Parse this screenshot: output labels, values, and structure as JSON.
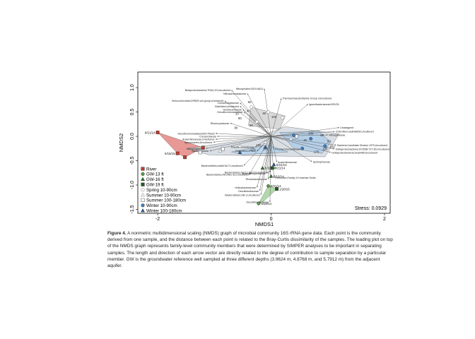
{
  "chart_data": {
    "type": "scatter",
    "xlabel": "NMDS1",
    "ylabel": "NMDS2",
    "xlim": [
      -2.35,
      2.1
    ],
    "ylim": [
      -1.58,
      1.32
    ],
    "xticks": [
      -2,
      0,
      2
    ],
    "yticks": [
      -1.5,
      -1.0,
      -0.5,
      0.0,
      0.5,
      1.0
    ],
    "stress_label": "Stress: 0.0929",
    "colors": {
      "River": "#c0392b",
      "GW-13 ft": "#5a9e4b",
      "GW-16 ft": "#2e7d32",
      "GW-19 ft": "#1b5e20",
      "Spring 10-90cm": "#6e6e6e",
      "Summer 10-90cm": "#7a7a7a",
      "Summer 100-180cm": "#555555",
      "Winter 10-90cm": "#3f7fc0",
      "Winter 100-180cm": "#2b5f9a"
    },
    "legend": [
      {
        "label": "River",
        "shape": "square"
      },
      {
        "label": "GW-13 ft",
        "shape": "circle"
      },
      {
        "label": "GW-16 ft",
        "shape": "triangle"
      },
      {
        "label": "GW-19 ft",
        "shape": "square"
      },
      {
        "label": "Spring 10-90cm",
        "shape": "circle-open"
      },
      {
        "label": "Summer 10-90cm",
        "shape": "triangle-open"
      },
      {
        "label": "Summer 100-180cm",
        "shape": "square-open"
      },
      {
        "label": "Winter 10-90cm",
        "shape": "circle"
      },
      {
        "label": "Winter 100-180cm",
        "shape": "triangle"
      }
    ],
    "hulls": [
      {
        "group": "River",
        "fill": "#d9534f",
        "points": [
          [
            -2.0,
            0.08
          ],
          [
            -1.2,
            -0.23
          ],
          [
            -1.52,
            -0.43
          ],
          [
            -1.65,
            -0.35
          ]
        ]
      },
      {
        "group": "GW-13 ft",
        "fill": "#7fbf6f",
        "points": [
          [
            -0.22,
            -1.38
          ],
          [
            -0.05,
            -1.02
          ],
          [
            0.1,
            -1.08
          ],
          [
            -0.12,
            -1.32
          ]
        ]
      },
      {
        "group": "Spring 10-90cm",
        "fill": "#bfbfbf",
        "points": [
          [
            -0.35,
            0.6
          ],
          [
            0.25,
            0.42
          ],
          [
            0.15,
            0.15
          ],
          [
            -0.4,
            0.22
          ]
        ]
      },
      {
        "group": "Summer 10-90cm",
        "fill": "#bfc9d4",
        "points": [
          [
            -1.5,
            -0.25
          ],
          [
            -0.3,
            -0.05
          ],
          [
            0.25,
            0.2
          ],
          [
            1.2,
            0.05
          ],
          [
            0.95,
            -0.42
          ],
          [
            -0.2,
            -0.4
          ],
          [
            -1.1,
            -0.38
          ]
        ]
      },
      {
        "group": "Winter 10-90cm",
        "fill": "#9cc4e8",
        "points": [
          [
            0.15,
            0.08
          ],
          [
            0.85,
            0.1
          ],
          [
            1.05,
            -0.12
          ],
          [
            0.9,
            -0.35
          ],
          [
            0.4,
            -0.25
          ]
        ]
      },
      {
        "group": "Winter 100-180cm",
        "fill": "#a9d0f0",
        "points": [
          [
            -0.7,
            -0.32
          ],
          [
            -0.05,
            -0.18
          ],
          [
            0.3,
            -0.32
          ],
          [
            -0.5,
            -0.38
          ]
        ]
      }
    ],
    "points": [
      {
        "group": "River",
        "x": -2.0,
        "y": 0.08,
        "label": "8/21/14"
      },
      {
        "group": "River",
        "x": -1.2,
        "y": -0.23
      },
      {
        "group": "River",
        "x": -1.52,
        "y": -0.43
      },
      {
        "group": "River",
        "x": -1.65,
        "y": -0.35,
        "label": "5/15/15"
      },
      {
        "group": "GW-13 ft",
        "x": -0.22,
        "y": -1.38,
        "label": "5/16/14"
      },
      {
        "group": "GW-13 ft",
        "x": -0.05,
        "y": -1.02,
        "label": "8/21/14"
      },
      {
        "group": "GW-16 ft",
        "x": 0.0,
        "y": -0.82,
        "label": "5/16/14"
      },
      {
        "group": "GW-16 ft",
        "x": -0.15,
        "y": -0.65,
        "label": "5/16/14"
      },
      {
        "group": "GW-19 ft",
        "x": 0.1,
        "y": -1.08,
        "label": "1/20/15"
      },
      {
        "group": "GW-19 ft",
        "x": 0.02,
        "y": -0.65,
        "label": "8/21/14"
      },
      {
        "group": "Spring 10-90cm",
        "x": -0.35,
        "y": 0.6
      },
      {
        "group": "Spring 10-90cm",
        "x": -0.05,
        "y": 0.5
      },
      {
        "group": "Spring 10-90cm",
        "x": 0.2,
        "y": 0.38
      },
      {
        "group": "Spring 10-90cm",
        "x": -0.25,
        "y": 0.3
      },
      {
        "group": "Summer 10-90cm",
        "x": -0.9,
        "y": -0.3
      },
      {
        "group": "Summer 10-90cm",
        "x": -0.55,
        "y": -0.2
      },
      {
        "group": "Summer 10-90cm",
        "x": -0.1,
        "y": -0.12
      },
      {
        "group": "Summer 10-90cm",
        "x": 0.35,
        "y": -0.05
      },
      {
        "group": "Summer 100-180cm",
        "x": -1.25,
        "y": -0.33
      },
      {
        "group": "Summer 100-180cm",
        "x": -0.85,
        "y": -0.26
      },
      {
        "group": "Summer 100-180cm",
        "x": 0.45,
        "y": 0.0
      },
      {
        "group": "Winter 10-90cm",
        "x": 0.4,
        "y": 0.02
      },
      {
        "group": "Winter 10-90cm",
        "x": 0.7,
        "y": -0.05
      },
      {
        "group": "Winter 10-90cm",
        "x": 0.95,
        "y": -0.2
      },
      {
        "group": "Winter 10-90cm",
        "x": 0.55,
        "y": -0.25
      },
      {
        "group": "Winter 100-180cm",
        "x": -0.55,
        "y": -0.33
      },
      {
        "group": "Winter 100-180cm",
        "x": -0.1,
        "y": -0.22
      },
      {
        "group": "Winter 100-180cm",
        "x": 0.05,
        "y": -0.58,
        "label": "8/21/14"
      }
    ],
    "sample_labels": [
      {
        "text": "60",
        "x": -0.38,
        "y": 0.68
      },
      {
        "text": "40",
        "x": -0.4,
        "y": 0.5
      },
      {
        "text": "20",
        "x": -0.6,
        "y": 0.44
      },
      {
        "text": "60",
        "x": -0.12,
        "y": 0.45
      },
      {
        "text": "100",
        "x": 0.05,
        "y": 0.38
      },
      {
        "text": "80",
        "x": -0.55,
        "y": 0.35
      },
      {
        "text": "90",
        "x": -0.35,
        "y": 0.2
      },
      {
        "text": "80",
        "x": -0.62,
        "y": 0.15
      },
      {
        "text": "100",
        "x": 0.7,
        "y": 0.04
      },
      {
        "text": "60",
        "x": 0.9,
        "y": 0.0
      },
      {
        "text": "50",
        "x": 1.02,
        "y": -0.12
      },
      {
        "text": "120",
        "x": 0.95,
        "y": -0.28
      },
      {
        "text": "170",
        "x": 0.8,
        "y": -0.34
      },
      {
        "text": "150",
        "x": 1.08,
        "y": -0.24
      },
      {
        "text": "40",
        "x": 0.6,
        "y": -0.1
      },
      {
        "text": "160",
        "x": -0.22,
        "y": -0.2
      },
      {
        "text": "140",
        "x": -0.1,
        "y": -0.28
      },
      {
        "text": "170",
        "x": -0.32,
        "y": -0.3
      }
    ],
    "vectors": [
      {
        "label": "Betaproteobacteria;TRA3-20;Uncultured",
        "x": -0.7,
        "y": 0.95
      },
      {
        "label": "Nitrosomonadaceae",
        "x": -0.42,
        "y": 0.88
      },
      {
        "label": "Nitrospirales;0319-6A21",
        "x": -0.12,
        "y": 0.98
      },
      {
        "label": "Verrucomicrobia;OPB35 soil group;Uncultured",
        "x": -0.82,
        "y": 0.73
      },
      {
        "label": "Thermarchaeota;Marine Group I;Uncultured",
        "x": 0.18,
        "y": 0.78
      },
      {
        "label": "Comamonadaceae",
        "x": -0.55,
        "y": 0.69
      },
      {
        "label": "Gaiellales;Uncultured",
        "x": -0.55,
        "y": 0.62
      },
      {
        "label": "Geobacteraceae",
        "x": -0.5,
        "y": 0.55
      },
      {
        "label": "Desulfuromonadaceae",
        "x": -0.48,
        "y": 0.5
      },
      {
        "label": "Ignavibacteriaceae;BSV26",
        "x": 0.65,
        "y": 0.66
      },
      {
        "label": "Rhodocyclaceae",
        "x": -0.72,
        "y": 0.27
      },
      {
        "label": "Desulfuromonadales;M20-Pitesti",
        "x": -0.98,
        "y": 0.06
      },
      {
        "label": "Crenarchaeota",
        "x": -0.95,
        "y": 0.0
      },
      {
        "label": "Anaerolineaceae;Uncultured",
        "x": -0.98,
        "y": -0.06
      },
      {
        "label": "Spirochaetes;Uncultured",
        "x": -1.02,
        "y": -0.12
      },
      {
        "label": "Holophagaceae",
        "x": -1.15,
        "y": -0.25
      },
      {
        "label": "Syntrophaceae",
        "x": -1.08,
        "y": -0.3
      },
      {
        "label": "Pseudomonadaceae",
        "x": -0.28,
        "y": -0.22
      },
      {
        "label": "Chloroflexi;OPB41",
        "x": -0.25,
        "y": -0.3
      },
      {
        "label": "Porphyromonadaceae",
        "x": 0.05,
        "y": -0.26
      },
      {
        "label": "Unassigned",
        "x": 1.2,
        "y": 0.18
      },
      {
        "label": "Chloroflexi;vadinBA26;Uncultured",
        "x": 1.12,
        "y": 0.1
      },
      {
        "label": "Nitrospiraceae",
        "x": 1.0,
        "y": 0.03
      },
      {
        "label": "Bacteria;Candidate Division OP3;Uncultured",
        "x": 1.15,
        "y": -0.18
      },
      {
        "label": "Deltaproteobacteria;Sh765B-TzT-35;Uncultured",
        "x": 1.12,
        "y": -0.26
      },
      {
        "label": "Deltaproteobacteria;Sva0485;Uncultured",
        "x": 1.05,
        "y": -0.33
      },
      {
        "label": "Syntrophaceae",
        "x": 0.72,
        "y": -0.52
      },
      {
        "label": "Anaerolineaceae",
        "x": 0.1,
        "y": -0.53
      },
      {
        "label": "Bacteroidetes;vadinHA17;Uncultured",
        "x": -0.48,
        "y": -0.6
      },
      {
        "label": "Hydrogenophilaceae",
        "x": -0.08,
        "y": -0.76
      },
      {
        "label": "Bacteroidetes;WCHB1-32;Uncultured",
        "x": -0.38,
        "y": -0.78
      },
      {
        "label": "Bacteroidetes;VC2.1 Bac22;Uncultured",
        "x": -0.02,
        "y": -0.74
      },
      {
        "label": "Firmicutes;Family XII Incertae Sedis",
        "x": 0.05,
        "y": -0.85
      },
      {
        "label": "Rhodobacteraceae",
        "x": -0.05,
        "y": -0.88
      },
      {
        "label": "Helicobacteraceae",
        "x": -0.25,
        "y": -1.05
      },
      {
        "label": "Desulfobulbaceae",
        "x": -0.2,
        "y": -1.12
      },
      {
        "label": "Bacteroidetes;SB-1;Uncultured",
        "x": -0.18,
        "y": -1.2
      },
      {
        "label": "Desulfobacteraceae",
        "x": -0.02,
        "y": -1.35
      }
    ]
  },
  "caption": {
    "figure_label": "Figure 4.",
    "text": "A nonmetric multidimensional scaling (NMDS) graph of microbial community 16S rRNA gene data. Each point is the community derived from one sample, and the distance between each point is related to the Bray-Curtis dissimilarity of the samples. The loading plot on top of the NMDS graph represents family-level community members that were determined by SIMPER analyses to be important in separating samples. The length and direction of each arrow vector are directly related to the degree of contribution to sample separation by a particular member. GW is the groundwater reference well sampled at three different depths (3.9624 m, 4.8768 m, and 5.7912 m) from the adjacent aquifer."
  }
}
